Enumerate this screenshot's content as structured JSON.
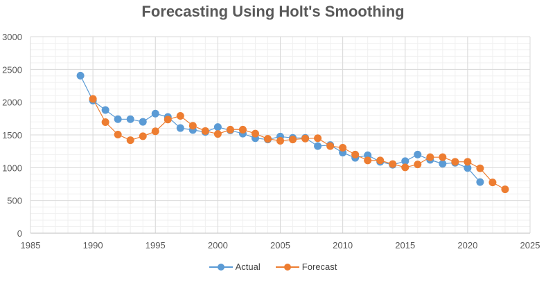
{
  "chart_data": {
    "type": "line",
    "title": "Forecasting Using Holt's Smoothing",
    "xlabel": "",
    "ylabel": "",
    "xlim": [
      1985,
      2025
    ],
    "ylim": [
      0,
      3000
    ],
    "x_ticks": [
      1985,
      1990,
      1995,
      2000,
      2005,
      2010,
      2015,
      2020,
      2025
    ],
    "y_ticks": [
      0,
      500,
      1000,
      1500,
      2000,
      2500,
      3000
    ],
    "grid": true,
    "minor_grid": true,
    "legend_position": "bottom",
    "series": [
      {
        "name": "Actual",
        "color": "#5B9BD5",
        "x": [
          1989,
          1990,
          1991,
          1992,
          1993,
          1994,
          1995,
          1996,
          1997,
          1998,
          1999,
          2000,
          2001,
          2002,
          2003,
          2004,
          2005,
          2006,
          2007,
          2008,
          2009,
          2010,
          2011,
          2012,
          2013,
          2014,
          2015,
          2016,
          2017,
          2018,
          2019,
          2020,
          2021
        ],
        "y": [
          2405,
          2025,
          1880,
          1740,
          1740,
          1700,
          1825,
          1775,
          1605,
          1575,
          1545,
          1620,
          1570,
          1520,
          1450,
          1430,
          1475,
          1455,
          1455,
          1330,
          1345,
          1230,
          1150,
          1190,
          1090,
          1045,
          1100,
          1200,
          1120,
          1060,
          1075,
          995,
          780
        ]
      },
      {
        "name": "Forecast",
        "color": "#ED7D31",
        "x": [
          1990,
          1991,
          1992,
          1993,
          1994,
          1995,
          1996,
          1997,
          1998,
          1999,
          2000,
          2001,
          2002,
          2003,
          2004,
          2005,
          2006,
          2007,
          2008,
          2009,
          2010,
          2011,
          2012,
          2013,
          2014,
          2015,
          2016,
          2017,
          2018,
          2019,
          2020,
          2021,
          2022,
          2023
        ],
        "y": [
          2050,
          1695,
          1505,
          1420,
          1480,
          1555,
          1735,
          1790,
          1640,
          1560,
          1515,
          1580,
          1580,
          1520,
          1440,
          1410,
          1430,
          1445,
          1450,
          1330,
          1305,
          1200,
          1110,
          1110,
          1055,
          1005,
          1050,
          1160,
          1160,
          1090,
          1090,
          990,
          775,
          670
        ]
      }
    ]
  }
}
